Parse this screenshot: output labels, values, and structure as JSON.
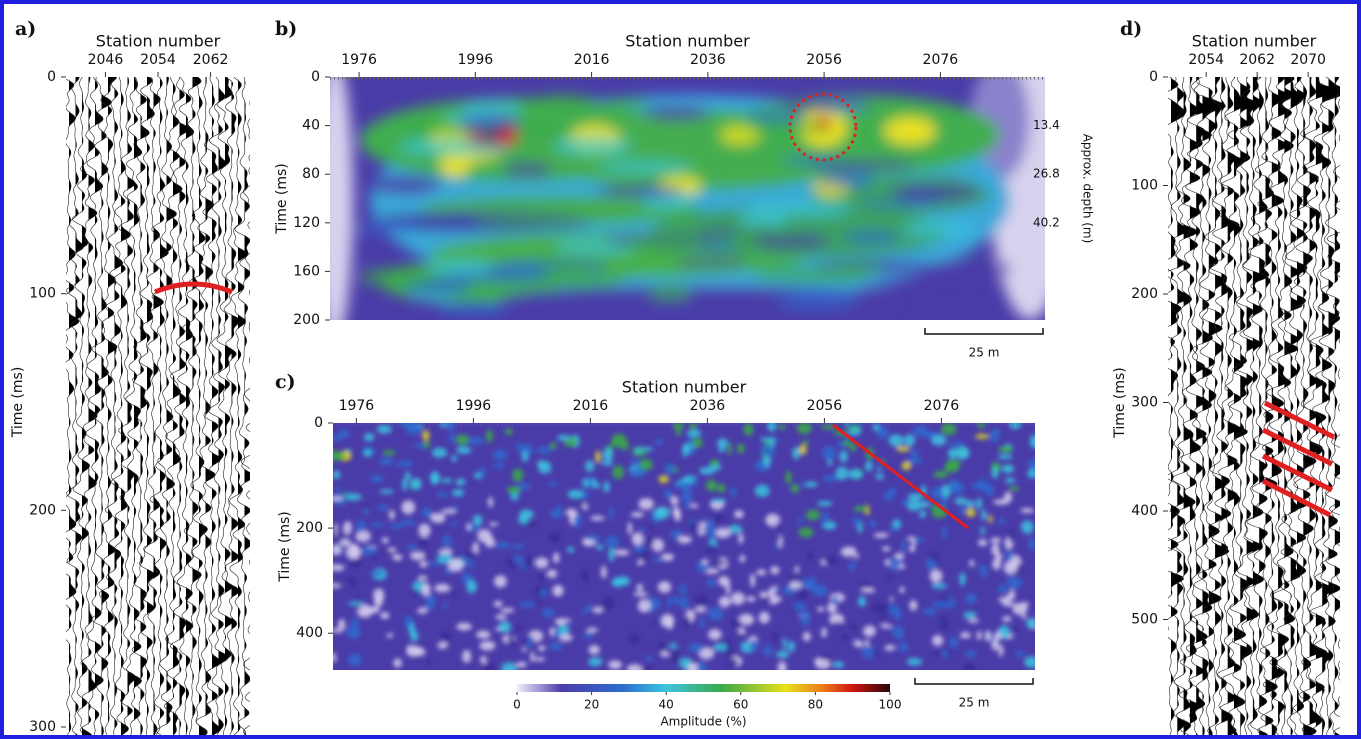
{
  "chart_data": [
    {
      "type": "wiggle",
      "panel": "a)",
      "title": "Station number",
      "y_label": "Time (ms)",
      "xlim": [
        2040,
        2068
      ],
      "xticks": [
        2046,
        2054,
        2062
      ],
      "ylim": [
        0,
        300
      ],
      "yticks": [
        0,
        100,
        200,
        300
      ]
    },
    {
      "type": "heatmap",
      "panel": "b)",
      "title": "Station number",
      "y_label": "Time (ms)",
      "xlim": [
        1971,
        2094
      ],
      "xticks": [
        1976,
        1996,
        2016,
        2036,
        2056,
        2076
      ],
      "ylim": [
        0,
        200
      ],
      "yticks": [
        0,
        40,
        80,
        120,
        160,
        200
      ],
      "y2_label": "Approx. depth (m)",
      "y2lim": [
        0,
        67
      ],
      "y2ticks": [
        13.4,
        26.8,
        40.2
      ],
      "scale_bar": "25 m"
    },
    {
      "type": "heatmap",
      "panel": "c)",
      "title": "Station number",
      "y_label": "Time (ms)",
      "xlim": [
        1972,
        2092
      ],
      "xticks": [
        1976,
        1996,
        2016,
        2036,
        2056,
        2076
      ],
      "ylim": [
        0,
        470
      ],
      "yticks": [
        0,
        200,
        400
      ],
      "scale_bar": "25 m",
      "colorbar": {
        "label": "Amplitude (%)",
        "lim": [
          0,
          100
        ],
        "ticks": [
          0,
          20,
          40,
          60,
          80,
          100
        ]
      }
    },
    {
      "type": "wiggle",
      "panel": "d)",
      "title": "Station number",
      "y_label": "Time (ms)",
      "xlim": [
        2048,
        2075
      ],
      "xticks": [
        2054,
        2062,
        2070
      ],
      "ylim": [
        0,
        600
      ],
      "yticks": [
        0,
        100,
        200,
        300,
        400,
        500
      ]
    }
  ]
}
